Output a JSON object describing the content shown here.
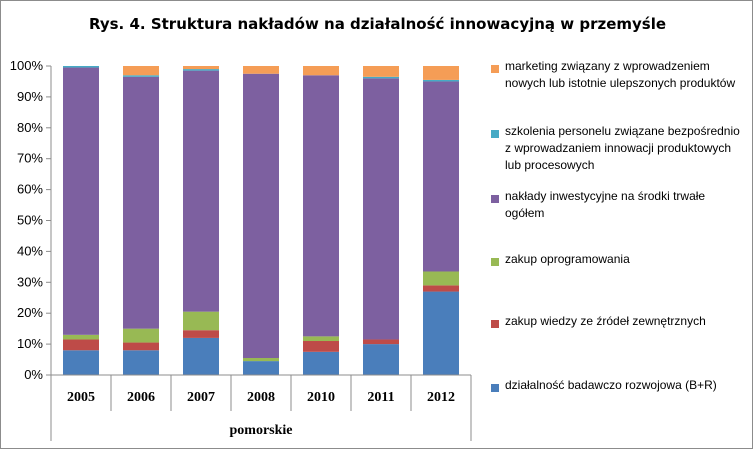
{
  "chart_data": {
    "type": "bar",
    "stacked": true,
    "percent": true,
    "title": "Rys. 4.  Struktura nakładów na działalność innowacyjną w przemyśle",
    "group_label": "pomorskie",
    "categories": [
      "2005",
      "2006",
      "2007",
      "2008",
      "2010",
      "2011",
      "2012"
    ],
    "ylim": [
      0,
      100
    ],
    "yticks": [
      "0%",
      "10%",
      "20%",
      "30%",
      "40%",
      "50%",
      "60%",
      "70%",
      "80%",
      "90%",
      "100%"
    ],
    "grid": false,
    "legend_position": "right",
    "series": [
      {
        "name": "działalność badawczo rozwojowa (B+R)",
        "color": "#4a7ebb",
        "values": [
          8,
          8,
          12,
          4.5,
          7.5,
          10,
          27
        ]
      },
      {
        "name": "zakup wiedzy ze źródeł zewnętrznych",
        "color": "#be4b48",
        "values": [
          3.5,
          2.5,
          2.5,
          0,
          3.5,
          1.5,
          2
        ]
      },
      {
        "name": "zakup oprogramowania",
        "color": "#98b954",
        "values": [
          1.5,
          4.5,
          6,
          1,
          1.5,
          0,
          4.5
        ]
      },
      {
        "name": "nakłady inwestycyjne na środki trwałe ogółem",
        "color": "#7d60a0",
        "values": [
          86.5,
          81.5,
          78,
          92,
          84.5,
          84.5,
          61.5
        ]
      },
      {
        "name": "szkolenia personelu związane bezpośrednio z wprowadzaniem innowacji produktowych lub procesowych",
        "color": "#46aac5",
        "values": [
          0.5,
          0.5,
          0.5,
          0,
          0,
          0.5,
          0.5
        ]
      },
      {
        "name": "marketing związany z wprowadzeniem nowych lub istotnie ulepszonych produktów",
        "color": "#f59d56",
        "values": [
          0,
          3,
          1,
          2.5,
          3,
          3.5,
          4.5
        ]
      }
    ]
  }
}
